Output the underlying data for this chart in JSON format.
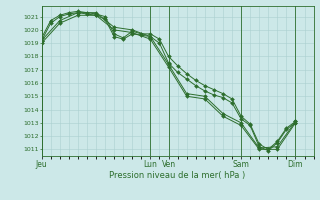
{
  "title": "",
  "xlabel": "Pression niveau de la mer( hPa )",
  "ylim": [
    1010.5,
    1021.8
  ],
  "yticks": [
    1011,
    1012,
    1013,
    1014,
    1015,
    1016,
    1017,
    1018,
    1019,
    1020,
    1021
  ],
  "bg_color": "#cce8e8",
  "line_color": "#2d6e2d",
  "grid_color": "#aad0d0",
  "x_day_labels": [
    "Jeu",
    "Lun",
    "Ven",
    "Sam",
    "Dim"
  ],
  "x_day_positions": [
    0,
    72,
    84,
    132,
    168
  ],
  "xlim": [
    0,
    180
  ],
  "series": [
    {
      "x": [
        0,
        6,
        12,
        18,
        24,
        30,
        36,
        42,
        48,
        54,
        60,
        66,
        72,
        78,
        84,
        90,
        96,
        102,
        108,
        114,
        120,
        126,
        132,
        138,
        144,
        150,
        156,
        162,
        168
      ],
      "y": [
        1019.2,
        1020.5,
        1021.0,
        1021.2,
        1021.3,
        1021.2,
        1021.1,
        1020.8,
        1019.5,
        1019.3,
        1019.7,
        1019.6,
        1019.5,
        1019.0,
        1017.5,
        1016.8,
        1016.3,
        1015.8,
        1015.4,
        1015.1,
        1014.9,
        1014.5,
        1013.3,
        1012.8,
        1011.2,
        1010.9,
        1011.5,
        1012.5,
        1013.0
      ],
      "marker": "D",
      "markersize": 2.0
    },
    {
      "x": [
        0,
        6,
        12,
        18,
        24,
        30,
        36,
        42,
        48,
        54,
        60,
        66,
        72,
        78,
        84,
        90,
        96,
        102,
        108,
        114,
        120,
        126,
        132,
        138,
        144,
        150,
        156,
        162,
        168
      ],
      "y": [
        1019.4,
        1020.7,
        1021.1,
        1021.3,
        1021.4,
        1021.3,
        1021.2,
        1021.0,
        1019.7,
        1019.4,
        1019.9,
        1019.7,
        1019.7,
        1019.3,
        1018.0,
        1017.3,
        1016.7,
        1016.2,
        1015.8,
        1015.5,
        1015.2,
        1014.8,
        1013.5,
        1012.9,
        1011.4,
        1011.0,
        1011.6,
        1012.6,
        1013.1
      ],
      "marker": "D",
      "markersize": 2.0
    },
    {
      "x": [
        0,
        12,
        24,
        36,
        48,
        60,
        72,
        84,
        96,
        108,
        120,
        132,
        144,
        156,
        168
      ],
      "y": [
        1019.0,
        1020.5,
        1021.1,
        1021.1,
        1020.0,
        1019.8,
        1019.3,
        1017.2,
        1015.0,
        1014.8,
        1013.5,
        1012.8,
        1011.0,
        1011.0,
        1013.0
      ],
      "marker": "D",
      "markersize": 2.0
    },
    {
      "x": [
        0,
        12,
        24,
        36,
        48,
        60,
        72,
        84,
        96,
        108,
        120,
        132,
        144,
        156,
        168
      ],
      "y": [
        1019.2,
        1020.7,
        1021.3,
        1021.3,
        1020.2,
        1020.0,
        1019.5,
        1017.4,
        1015.2,
        1015.0,
        1013.7,
        1013.0,
        1011.1,
        1011.2,
        1013.1
      ],
      "marker": "D",
      "markersize": 2.0
    }
  ],
  "vlines": [
    0,
    72,
    84,
    132,
    168
  ],
  "figsize": [
    3.2,
    2.0
  ],
  "dpi": 100
}
